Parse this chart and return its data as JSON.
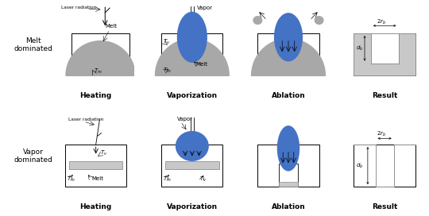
{
  "bg_color": "#ffffff",
  "gray_color": "#a8a8a8",
  "blue_color": "#4472c4",
  "light_gray": "#c8c8c8",
  "mid_gray": "#909090",
  "row_labels": [
    "Melt\ndominated",
    "Vapor\ndominated"
  ],
  "col_labels": [
    "Heating",
    "Vaporization",
    "Ablation",
    "Result"
  ],
  "col_label_fontsize": 6.5,
  "row_label_fontsize": 6.5,
  "annotation_fontsize": 5.0
}
